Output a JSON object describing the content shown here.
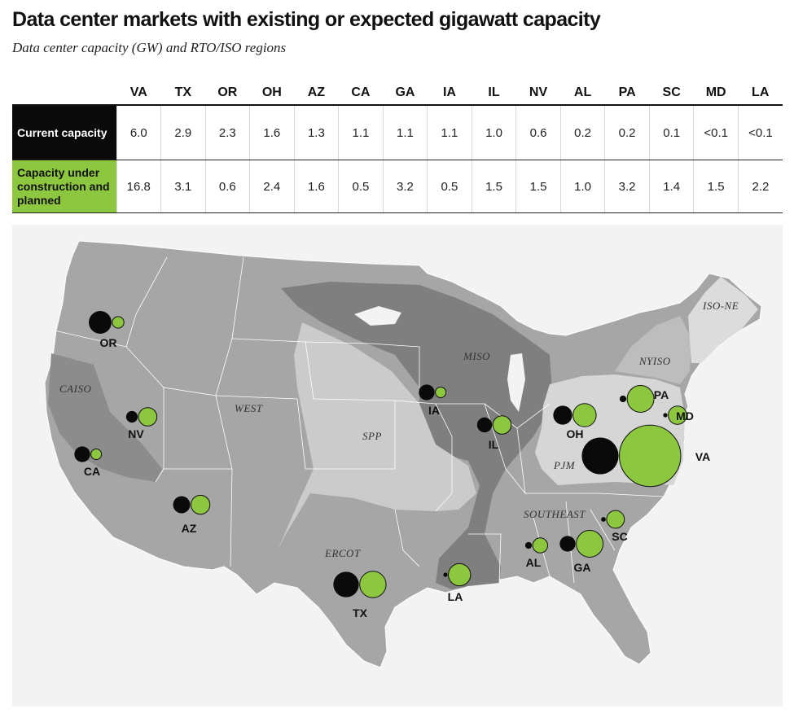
{
  "title": "Data center markets with existing or expected gigawatt capacity",
  "subtitle": "Data center capacity (GW) and RTO/ISO regions",
  "table": {
    "row_labels": {
      "current": "Current capacity",
      "planned": "Capacity under construction and planned"
    }
  },
  "colors": {
    "current": "#0a0a0a",
    "planned": "#8dc63f",
    "map_background": "#f3f3f3",
    "state_fill": "#a6a6a6",
    "region_dark": "#7a7a7a",
    "region_light": "#c8c8c8"
  },
  "chart_data": {
    "type": "table",
    "categories": [
      "VA",
      "TX",
      "OR",
      "OH",
      "AZ",
      "CA",
      "GA",
      "IA",
      "IL",
      "NV",
      "AL",
      "PA",
      "SC",
      "MD",
      "LA"
    ],
    "series": [
      {
        "name": "Current capacity",
        "values": [
          6.0,
          2.9,
          2.3,
          1.6,
          1.3,
          1.1,
          1.1,
          1.1,
          1.0,
          0.6,
          0.2,
          0.2,
          0.1,
          0.05,
          0.05
        ],
        "display": [
          "6.0",
          "2.9",
          "2.3",
          "1.6",
          "1.3",
          "1.1",
          "1.1",
          "1.1",
          "1.0",
          "0.6",
          "0.2",
          "0.2",
          "0.1",
          "<0.1",
          "<0.1"
        ],
        "color": "#0a0a0a"
      },
      {
        "name": "Capacity under construction and planned",
        "values": [
          16.8,
          3.1,
          0.6,
          2.4,
          1.6,
          0.5,
          3.2,
          0.5,
          1.5,
          1.5,
          1.0,
          3.2,
          1.4,
          1.5,
          2.2
        ],
        "display": [
          "16.8",
          "3.1",
          "0.6",
          "2.4",
          "1.6",
          "0.5",
          "3.2",
          "0.5",
          "1.5",
          "1.5",
          "1.0",
          "3.2",
          "1.4",
          "1.5",
          "2.2"
        ],
        "color": "#8dc63f"
      }
    ],
    "regions": [
      "ISO-NE",
      "NYISO",
      "MISO",
      "PJM",
      "CAISO",
      "WEST",
      "SPP",
      "SOUTHEAST",
      "ERCOT"
    ],
    "map_states": [
      "OR",
      "CA",
      "NV",
      "AZ",
      "TX",
      "IA",
      "IL",
      "OH",
      "PA",
      "MD",
      "VA",
      "SC",
      "AL",
      "GA",
      "LA"
    ]
  }
}
